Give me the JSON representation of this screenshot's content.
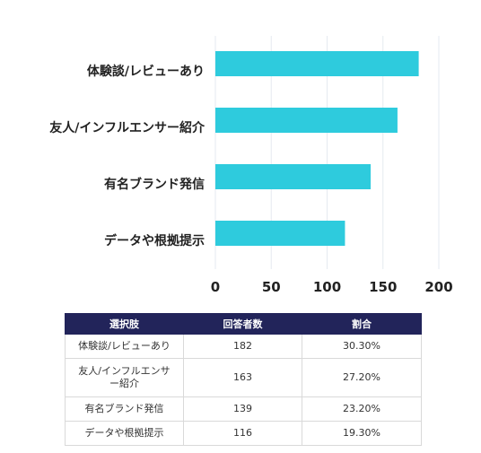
{
  "chart_data": {
    "type": "bar",
    "orientation": "horizontal",
    "categories": [
      "体験談/レビューあり",
      "友人/インフルエンサー紹介",
      "有名ブランド発信",
      "データや根拠提示"
    ],
    "values": [
      182,
      163,
      139,
      116
    ],
    "xlim": [
      0,
      200
    ],
    "xticks": [
      0,
      50,
      100,
      150,
      200
    ],
    "grid": true,
    "bar_color": "#2ecbdd",
    "grid_color": "#e6eaf0"
  },
  "table": {
    "headers": [
      "選択肢",
      "回答者数",
      "割合"
    ],
    "rows": [
      [
        "体験談/レビューあり",
        "182",
        "30.30%"
      ],
      [
        "友人/インフルエンサー紹介",
        "163",
        "27.20%"
      ],
      [
        "有名ブランド発信",
        "139",
        "23.20%"
      ],
      [
        "データや根拠提示",
        "116",
        "19.30%"
      ]
    ],
    "header_color": "#22245a"
  }
}
